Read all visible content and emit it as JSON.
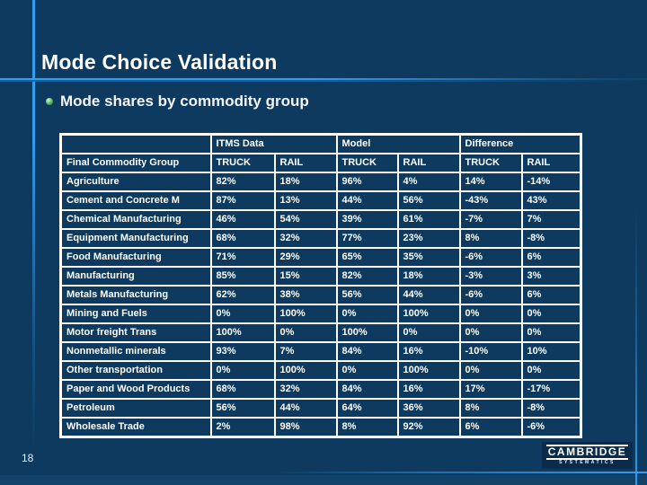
{
  "slide": {
    "title": "Mode Choice Validation",
    "bullet": "Mode shares by commodity group",
    "page_number": "18"
  },
  "table": {
    "group_headers": {
      "corner": "",
      "itms": "ITMS Data",
      "model": "Model",
      "difference": "Difference"
    },
    "column_headers": [
      "Final Commodity Group",
      "TRUCK",
      "RAIL",
      "TRUCK",
      "RAIL",
      "TRUCK",
      "RAIL"
    ],
    "rows": [
      {
        "label": "Agriculture",
        "values": [
          "82%",
          "18%",
          "96%",
          "4%",
          "14%",
          "-14%"
        ]
      },
      {
        "label": "Cement and Concrete M",
        "values": [
          "87%",
          "13%",
          "44%",
          "56%",
          "-43%",
          "43%"
        ]
      },
      {
        "label": "Chemical Manufacturing",
        "values": [
          "46%",
          "54%",
          "39%",
          "61%",
          "-7%",
          "7%"
        ]
      },
      {
        "label": "Equipment Manufacturing",
        "values": [
          "68%",
          "32%",
          "77%",
          "23%",
          "8%",
          "-8%"
        ]
      },
      {
        "label": "Food Manufacturing",
        "values": [
          "71%",
          "29%",
          "65%",
          "35%",
          "-6%",
          "6%"
        ]
      },
      {
        "label": "Manufacturing",
        "values": [
          "85%",
          "15%",
          "82%",
          "18%",
          "-3%",
          "3%"
        ]
      },
      {
        "label": "Metals Manufacturing",
        "values": [
          "62%",
          "38%",
          "56%",
          "44%",
          "-6%",
          "6%"
        ]
      },
      {
        "label": "Mining and Fuels",
        "values": [
          "0%",
          "100%",
          "0%",
          "100%",
          "0%",
          "0%"
        ]
      },
      {
        "label": "Motor freight Trans",
        "values": [
          "100%",
          "0%",
          "100%",
          "0%",
          "0%",
          "0%"
        ]
      },
      {
        "label": "Nonmetallic minerals",
        "values": [
          "93%",
          "7%",
          "84%",
          "16%",
          "-10%",
          "10%"
        ]
      },
      {
        "label": "Other transportation",
        "values": [
          "0%",
          "100%",
          "0%",
          "100%",
          "0%",
          "0%"
        ]
      },
      {
        "label": "Paper and Wood Products",
        "values": [
          "68%",
          "32%",
          "84%",
          "16%",
          "17%",
          "-17%"
        ]
      },
      {
        "label": "Petroleum",
        "values": [
          "56%",
          "44%",
          "64%",
          "36%",
          "8%",
          "-8%"
        ]
      },
      {
        "label": "Wholesale Trade",
        "values": [
          "2%",
          "98%",
          "8%",
          "92%",
          "6%",
          "-6%"
        ]
      }
    ]
  },
  "logo": {
    "line1": "CAMBRIDGE",
    "line2": "SYSTEMATICS"
  },
  "colors": {
    "background": "#0d3a5e",
    "accent_line_bright": "#2f9df2",
    "accent_line_dark": "#16639f",
    "table_border": "#ffffff",
    "text": "#ffffff",
    "bullet_green": "#4db55a",
    "bottom_strip": "#124369",
    "logo_background": "#0a2c4a"
  }
}
